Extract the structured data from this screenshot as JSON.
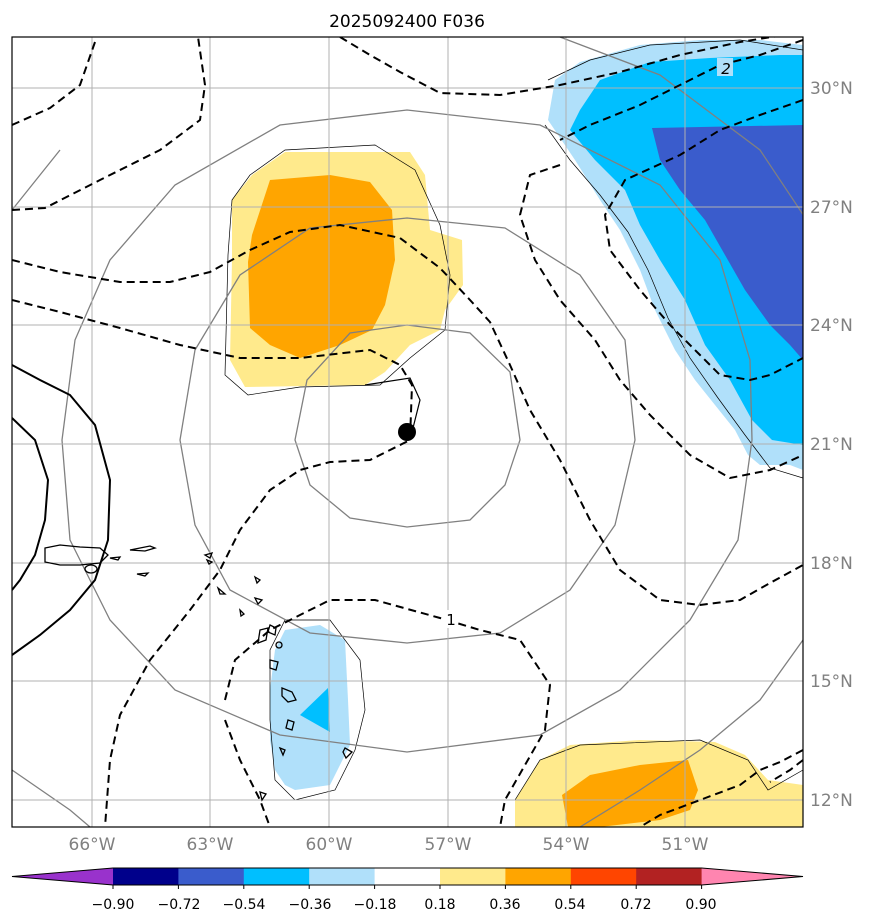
{
  "title": "2025092400 F036",
  "map": {
    "lon_labels": [
      "66°W",
      "63°W",
      "60°W",
      "57°W",
      "54°W",
      "51°W"
    ],
    "lat_labels": [
      "30°N",
      "27°N",
      "24°N",
      "21°N",
      "18°N",
      "15°N",
      "12°N"
    ],
    "contour_labels": [
      "2",
      "1"
    ],
    "grid": true,
    "storm_center": {
      "lon": -58.0,
      "lat": 21.3
    }
  },
  "colorbar": {
    "ticks": [
      "−0.90",
      "−0.72",
      "−0.54",
      "−0.36",
      "−0.18",
      "0.18",
      "0.36",
      "0.54",
      "0.72",
      "0.90"
    ],
    "colors": [
      "#9932cc",
      "#00008b",
      "#3a5ccc",
      "#00bfff",
      "#b0e0fa",
      "#ffffff",
      "#ffea8c",
      "#ffa500",
      "#ff4500",
      "#b22222",
      "#ff85b0"
    ]
  }
}
